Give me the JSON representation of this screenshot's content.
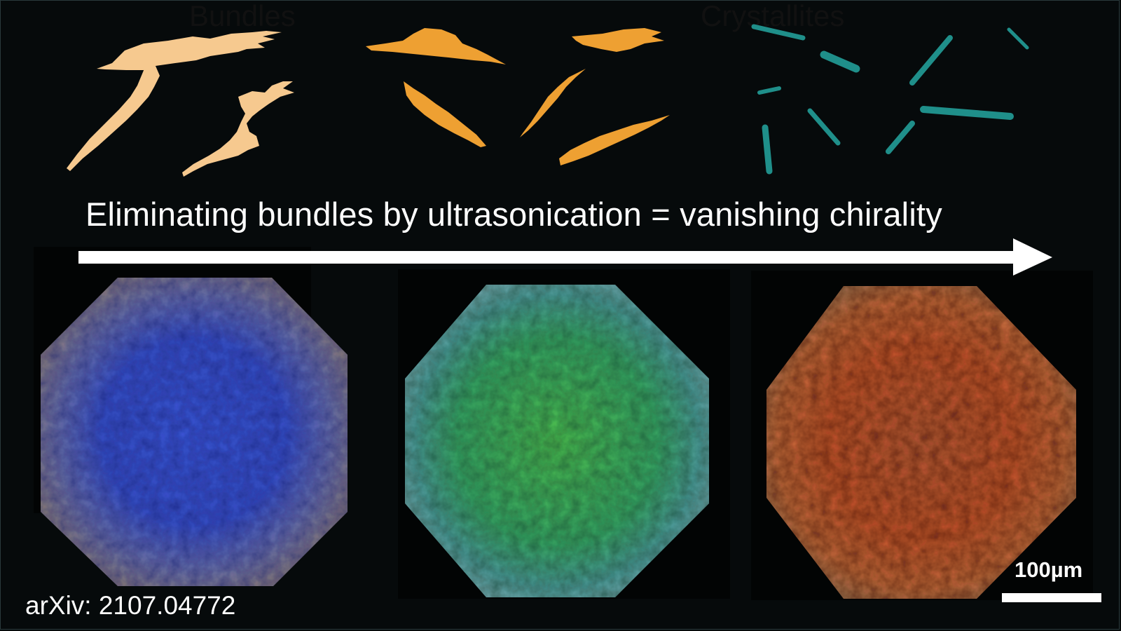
{
  "headers": {
    "left": "Bundles",
    "right": "Crystallites"
  },
  "headline": "Eliminating bundles by ultrasonication = vanishing chirality",
  "arxiv_ref": "arXiv: 2107.04772",
  "scale_bar": {
    "label": "100µm"
  },
  "colors": {
    "background": "#060a0b",
    "bundle_light": "#f6c98f",
    "bundle_orange": "#eea032",
    "crystallite_teal": "#1f8f8a",
    "arrow": "#ffffff",
    "sample_blue": "#3a4fd0",
    "sample_green": "#3fb46a",
    "sample_red": "#c45a2e"
  },
  "icons": {
    "arrow": "right-arrow-icon"
  }
}
